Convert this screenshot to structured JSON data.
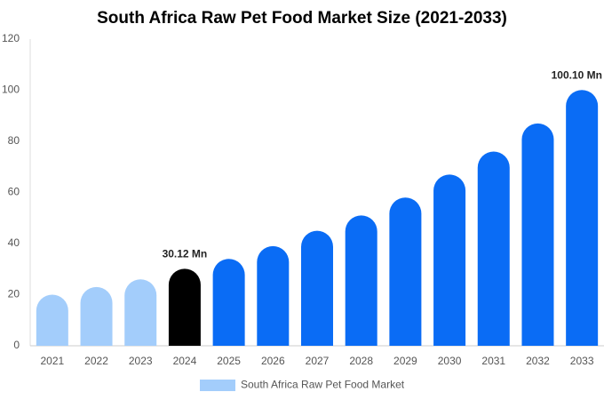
{
  "chart_data": {
    "type": "bar",
    "title": "South Africa Raw Pet Food Market Size (2021-2033)",
    "categories": [
      "2021",
      "2022",
      "2023",
      "2024",
      "2025",
      "2026",
      "2027",
      "2028",
      "2029",
      "2030",
      "2031",
      "2032",
      "2033"
    ],
    "series": [
      {
        "name": "South Africa Raw Pet Food Market",
        "color": "#a3cdfb",
        "colors": [
          "#a3cdfb",
          "#a3cdfb",
          "#a3cdfb",
          "#000000",
          "#0a6cf5",
          "#0a6cf5",
          "#0a6cf5",
          "#0a6cf5",
          "#0a6cf5",
          "#0a6cf5",
          "#0a6cf5",
          "#0a6cf5",
          "#0a6cf5"
        ],
        "values": [
          20,
          23,
          26,
          30.12,
          34,
          39,
          45,
          51,
          58,
          67,
          76,
          87,
          100.1
        ],
        "value_labels": [
          null,
          null,
          null,
          "30.12 Mn",
          null,
          null,
          null,
          null,
          null,
          null,
          null,
          null,
          "100.10 Mn"
        ]
      }
    ],
    "ylim": [
      0,
      120
    ],
    "yticks": [
      0,
      20,
      40,
      60,
      80,
      100,
      120
    ],
    "grid": false,
    "legend": "bottom"
  }
}
